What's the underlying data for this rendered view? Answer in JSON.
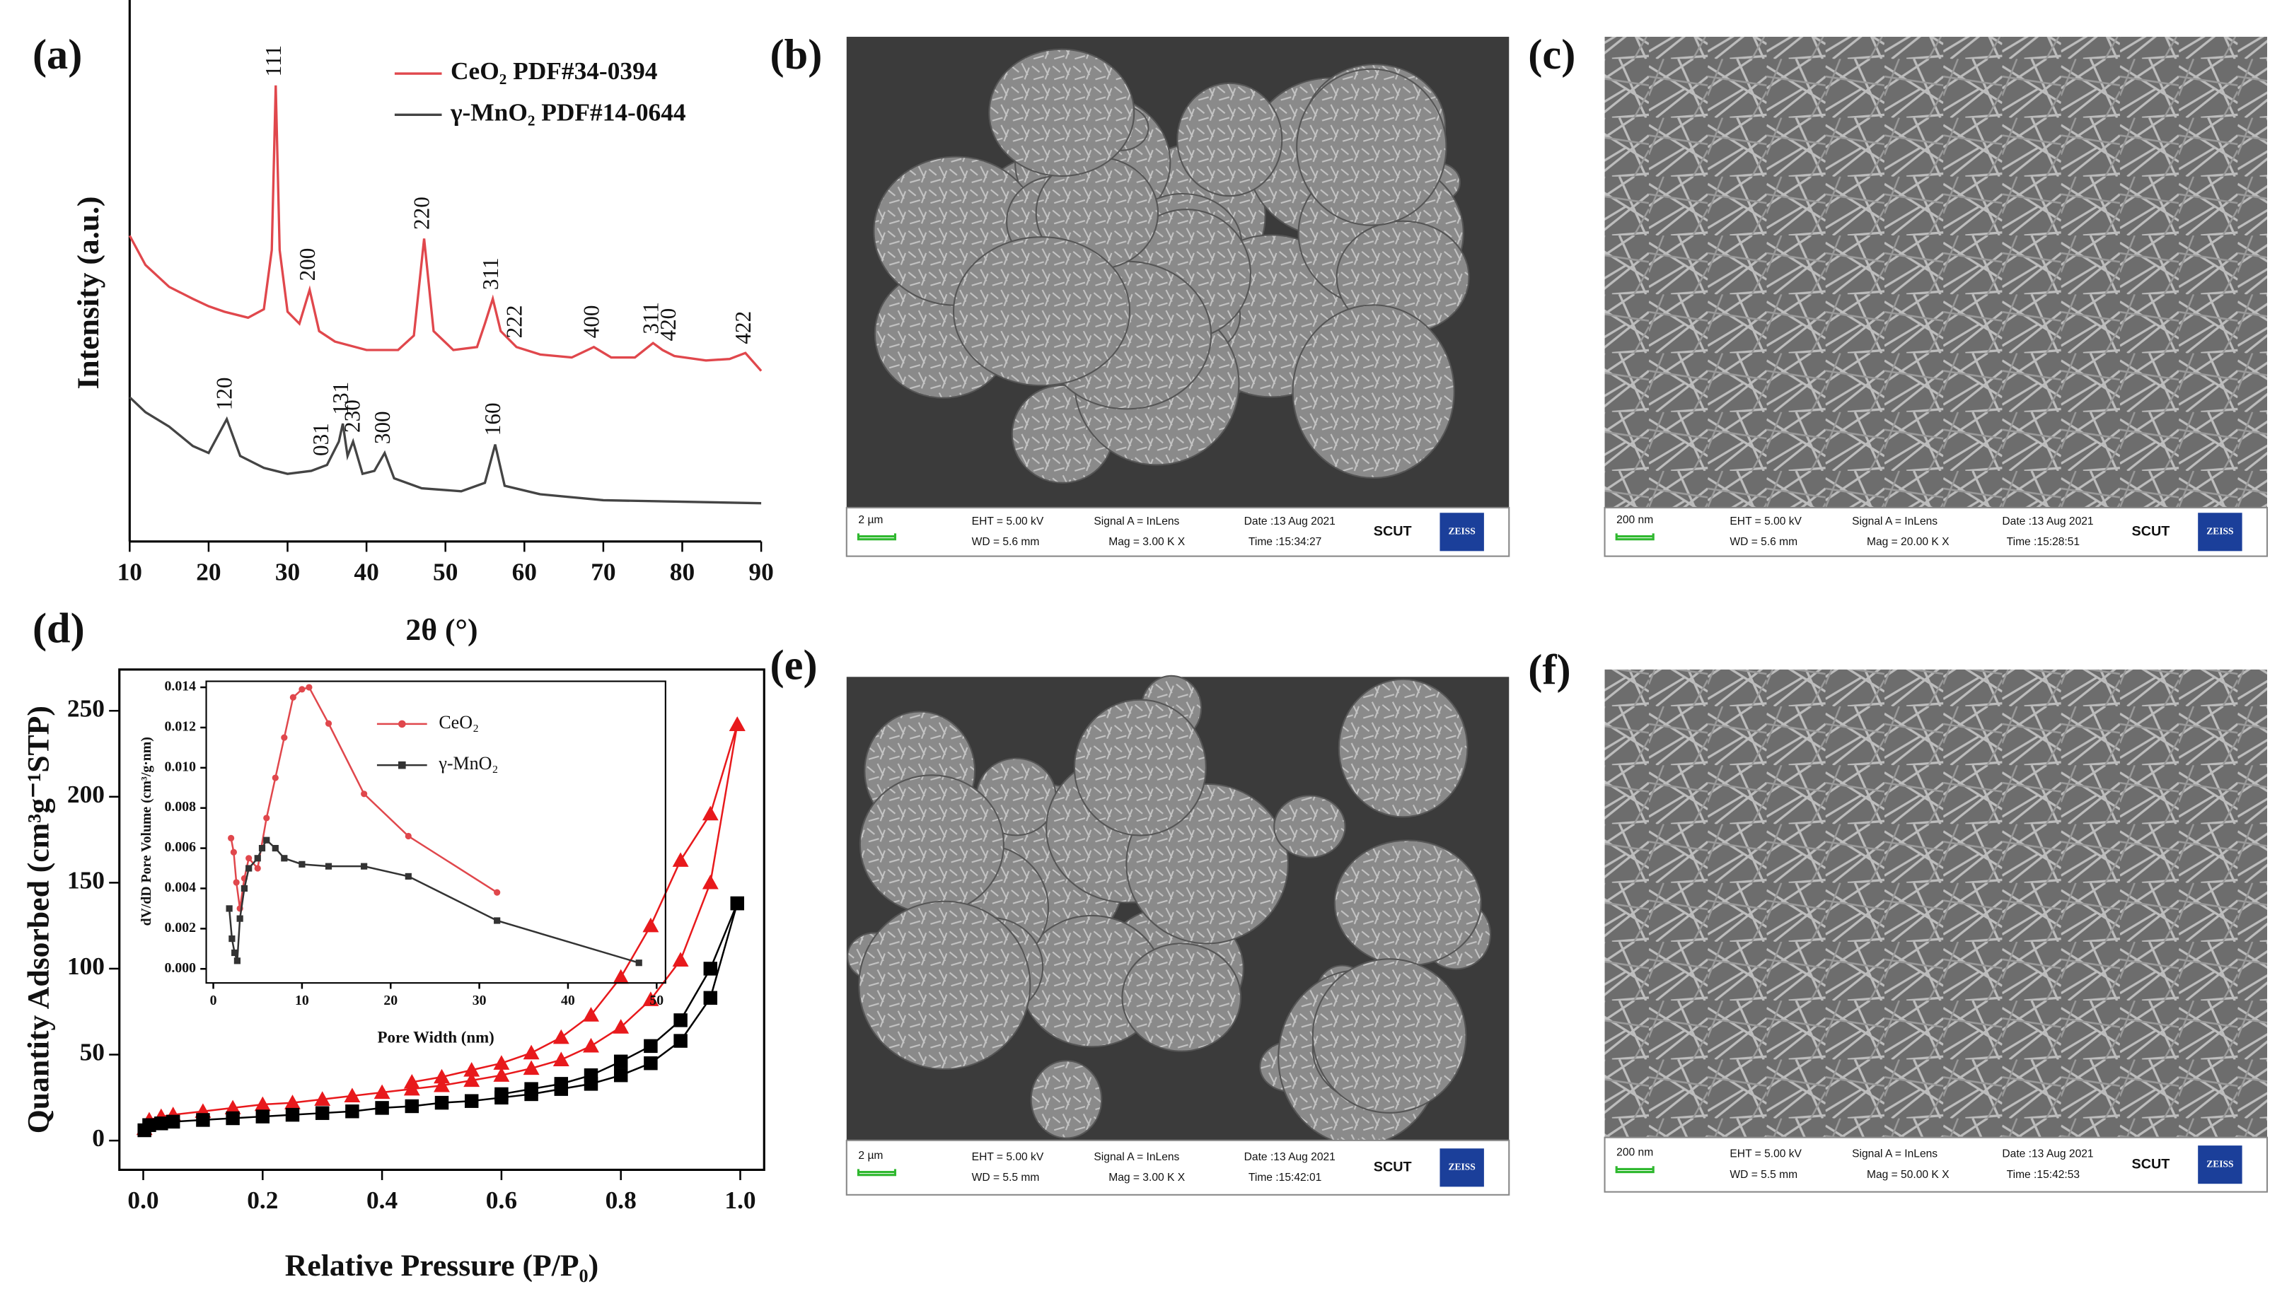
{
  "chart_data": [
    {
      "type": "line",
      "label": "(a)",
      "xlabel": "2θ (°)",
      "ylabel": "Intensity (a.u.)",
      "xlim": [
        10,
        90
      ],
      "ylim": [
        0,
        100
      ],
      "xticks": [
        10,
        20,
        30,
        40,
        50,
        60,
        70,
        80,
        90
      ],
      "series": [
        {
          "name": "CeO₂ PDF#34-0394",
          "color": "#e0474c",
          "x": [
            10,
            12,
            15,
            18,
            20,
            22,
            25,
            27,
            28,
            28.5,
            29,
            30,
            31.5,
            32.8,
            34,
            36,
            40,
            44,
            46,
            47.3,
            48.5,
            51,
            54,
            55,
            56,
            57,
            59,
            62,
            66,
            68.8,
            71,
            74,
            76.3,
            77.5,
            79,
            83,
            86,
            88,
            90
          ],
          "values": [
            61.5,
            55.6,
            51.2,
            48.8,
            47.3,
            46.2,
            45.0,
            46.7,
            58.6,
            91.7,
            58.6,
            46.2,
            43.8,
            50.6,
            42.3,
            40.2,
            38.5,
            38.5,
            41.4,
            60.9,
            42.3,
            38.5,
            39.1,
            43.8,
            48.8,
            42.3,
            39.1,
            37.6,
            37.0,
            39.1,
            37.0,
            37.0,
            39.9,
            38.5,
            37.3,
            36.4,
            36.7,
            37.9,
            34.3
          ],
          "peaks": [
            {
              "label": "111",
              "x": 28.5
            },
            {
              "label": "200",
              "x": 32.8
            },
            {
              "label": "220",
              "x": 47.3
            },
            {
              "label": "311",
              "x": 56
            },
            {
              "label": "222",
              "x": 59
            },
            {
              "label": "400",
              "x": 68.8
            },
            {
              "label": "311",
              "x": 76.3
            },
            {
              "label": "420",
              "x": 78.5
            },
            {
              "label": "422",
              "x": 88
            }
          ]
        },
        {
          "name": "γ-MnO₂ PDF#14-0644",
          "color": "#444444",
          "x": [
            10,
            12,
            15,
            18,
            20,
            22.3,
            24,
            27,
            30,
            33,
            35,
            36.5,
            37,
            37.6,
            38.3,
            39.5,
            41,
            42.3,
            43.5,
            47,
            52,
            55,
            56.3,
            57.5,
            62,
            70,
            80,
            90
          ],
          "values": [
            29.0,
            26.0,
            23.1,
            19.2,
            17.8,
            24.6,
            17.2,
            14.8,
            13.6,
            14.2,
            15.4,
            20.1,
            23.7,
            17.2,
            20.1,
            13.6,
            14.2,
            17.8,
            12.7,
            10.7,
            10.1,
            11.8,
            19.5,
            11.2,
            9.5,
            8.3,
            8.0,
            7.7
          ],
          "peaks": [
            {
              "label": "120",
              "x": 22.3
            },
            {
              "label": "031",
              "x": 34.5
            },
            {
              "label": "131",
              "x": 37
            },
            {
              "label": "230",
              "x": 38.5
            },
            {
              "label": "300",
              "x": 42.3
            },
            {
              "label": "160",
              "x": 56.3
            }
          ]
        }
      ]
    },
    {
      "type": "scatter",
      "label": "(d)",
      "xlabel": "Relative Pressure (P/P₀)",
      "ylabel": "Quantity Adsorbed (cm³g⁻¹STP)",
      "xlim": [
        -0.04,
        1.04
      ],
      "ylim": [
        -17,
        274
      ],
      "xticks": [
        {
          "value": 0,
          "label": "0.0"
        },
        {
          "value": 0.2,
          "label": "0.2"
        },
        {
          "value": 0.4,
          "label": "0.4"
        },
        {
          "value": 0.6,
          "label": "0.6"
        },
        {
          "value": 0.8,
          "label": "0.8"
        },
        {
          "value": 1,
          "label": "1.0"
        }
      ],
      "yticks": [
        0,
        50,
        100,
        150,
        200,
        250
      ],
      "series": [
        {
          "color": "#e8191c",
          "marker": "triangle",
          "x": [
            0.002,
            0.01,
            0.03,
            0.05,
            0.1,
            0.15,
            0.2,
            0.25,
            0.3,
            0.35,
            0.4,
            0.45,
            0.5,
            0.55,
            0.6,
            0.65,
            0.7,
            0.75,
            0.8,
            0.85,
            0.9,
            0.95,
            0.995
          ],
          "values": [
            7,
            12,
            14,
            15,
            17,
            19,
            21,
            22,
            24,
            26,
            28,
            30,
            32,
            35,
            38,
            42,
            47,
            55,
            66,
            82,
            105,
            150,
            242
          ]
        },
        {
          "color": "#e8191c",
          "marker": "triangle",
          "x": [
            0.995,
            0.95,
            0.9,
            0.85,
            0.8,
            0.75,
            0.7,
            0.65,
            0.6,
            0.55,
            0.5,
            0.45
          ],
          "values": [
            242,
            190,
            163,
            125,
            95,
            73,
            60,
            51,
            45,
            41,
            37,
            34
          ]
        },
        {
          "color": "#000000",
          "marker": "square",
          "x": [
            0.002,
            0.01,
            0.03,
            0.05,
            0.1,
            0.15,
            0.2,
            0.25,
            0.3,
            0.35,
            0.4,
            0.45,
            0.5,
            0.55,
            0.6,
            0.65,
            0.7,
            0.75,
            0.8,
            0.85,
            0.9,
            0.95,
            0.995
          ],
          "values": [
            6,
            9,
            10,
            11,
            12,
            13,
            14,
            15,
            16,
            17,
            19,
            20,
            22,
            23,
            25,
            27,
            30,
            33,
            38,
            45,
            58,
            83,
            138
          ]
        },
        {
          "color": "#000000",
          "marker": "square",
          "x": [
            0.995,
            0.95,
            0.9,
            0.85,
            0.8,
            0.75,
            0.7,
            0.65,
            0.6
          ],
          "values": [
            138,
            100,
            70,
            55,
            46,
            38,
            33,
            30,
            27
          ]
        }
      ]
    },
    {
      "type": "scatter",
      "xlabel": "Pore Width (nm)",
      "ylabel": "dV/dD Pore Volume (cm³/g·nm)",
      "xlim": [
        -0.8,
        51
      ],
      "ylim": [
        -0.0007,
        0.0143
      ],
      "xticks": [
        0,
        10,
        20,
        30,
        40,
        50
      ],
      "yticks": [
        {
          "value": 0,
          "label": "0.000"
        },
        {
          "value": 0.002,
          "label": "0.002"
        },
        {
          "value": 0.004,
          "label": "0.004"
        },
        {
          "value": 0.006,
          "label": "0.006"
        },
        {
          "value": 0.008,
          "label": "0.008"
        },
        {
          "value": 0.01,
          "label": "0.010"
        },
        {
          "value": 0.012,
          "label": "0.012"
        },
        {
          "value": 0.014,
          "label": "0.014"
        }
      ],
      "series": [
        {
          "name": "CeO₂",
          "color": "#e0474c",
          "marker": "circle",
          "x": [
            2.0,
            2.3,
            2.6,
            3,
            3.5,
            4,
            5,
            6,
            7,
            8,
            9,
            10,
            10.8,
            13,
            17,
            22,
            32
          ],
          "values": [
            0.0065,
            0.0058,
            0.0043,
            0.003,
            0.0045,
            0.0055,
            0.005,
            0.0075,
            0.0095,
            0.0115,
            0.0135,
            0.0139,
            0.014,
            0.0122,
            0.0087,
            0.0066,
            0.0038
          ]
        },
        {
          "name": "γ-MnO₂",
          "color": "#333333",
          "marker": "square",
          "x": [
            1.8,
            2.1,
            2.4,
            2.7,
            3,
            3.5,
            4,
            5,
            5.5,
            6,
            7,
            8,
            10,
            13,
            17,
            22,
            32,
            48
          ],
          "values": [
            0.003,
            0.0015,
            0.0008,
            0.0004,
            0.0025,
            0.004,
            0.005,
            0.0055,
            0.006,
            0.0064,
            0.006,
            0.0055,
            0.0052,
            0.0051,
            0.0051,
            0.0046,
            0.0024,
            0.0003
          ]
        }
      ]
    }
  ],
  "images": [
    {
      "label": "(b)",
      "scale": "2 µm",
      "eht": "EHT =  5.00 kV",
      "wd": "WD =  5.6 mm",
      "signal": "Signal A = InLens",
      "mag": "Mag =    3.00 K X",
      "date": "Date :13 Aug 2021",
      "time": "Time :15:34:27",
      "org": "SCUT",
      "logo": "ZEISS"
    },
    {
      "label": "(c)",
      "scale": "200 nm",
      "eht": "EHT =  5.00 kV",
      "wd": "WD =  5.6 mm",
      "signal": "Signal A = InLens",
      "mag": "Mag =   20.00 K X",
      "date": "Date :13 Aug 2021",
      "time": "Time :15:28:51",
      "org": "SCUT",
      "logo": "ZEISS"
    },
    {
      "label": "(e)",
      "scale": "2 µm",
      "eht": "EHT =  5.00 kV",
      "wd": "WD =  5.5 mm",
      "signal": "Signal A = InLens",
      "mag": "Mag =    3.00 K X",
      "date": "Date :13 Aug 2021",
      "time": "Time :15:42:01",
      "org": "SCUT",
      "logo": "ZEISS"
    },
    {
      "label": "(f)",
      "scale": "200 nm",
      "eht": "EHT =  5.00 kV",
      "wd": "WD =  5.5 mm",
      "signal": "Signal A = InLens",
      "mag": "Mag =   50.00 K X",
      "date": "Date :13 Aug 2021",
      "time": "Time :15:42:53",
      "org": "SCUT",
      "logo": "ZEISS"
    }
  ]
}
